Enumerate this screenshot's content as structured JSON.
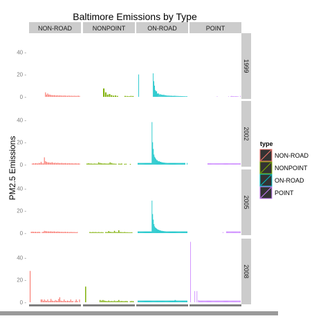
{
  "chart_data": {
    "type": "bar",
    "title": "Baltimore Emissions by Type",
    "xlabel": "",
    "ylabel": "PM2.5 Emissions",
    "ylim": [
      0,
      55
    ],
    "y_ticks": [
      0,
      20,
      40
    ],
    "y_tick_labels": [
      "0 -",
      "20 -",
      "40 -"
    ],
    "grid": false,
    "facets": {
      "columns": [
        "NON-ROAD",
        "NONPOINT",
        "ON-ROAD",
        "POINT"
      ],
      "rows": [
        "1999",
        "2002",
        "2005",
        "2008"
      ]
    },
    "legend": {
      "title": "type",
      "placement": "right",
      "entries": [
        "NON-ROAD",
        "NONPOINT",
        "ON-ROAD",
        "POINT"
      ]
    },
    "colors": {
      "NON-ROAD": "#f8766d",
      "NONPOINT": "#7cae00",
      "ON-ROAD": "#00bfc4",
      "POINT": "#c77cff"
    },
    "panels": {
      "1999": {
        "NON-ROAD": [
          0,
          0,
          0,
          0,
          0,
          0,
          0,
          0,
          0,
          0,
          0,
          0,
          0,
          0,
          4,
          2,
          3,
          2,
          2,
          1.6,
          1.5,
          1.4,
          1.5,
          1.3,
          1.2,
          1.4,
          1.1,
          1.3,
          1.2,
          1.1,
          1,
          1.2,
          1.1,
          1,
          0.9,
          1.1,
          1,
          0.9,
          1,
          0.8,
          1,
          0.9,
          0.8,
          0.9,
          1,
          0.8
        ],
        "NONPOINT": [
          0,
          0,
          0,
          0,
          0,
          0,
          0,
          0,
          0,
          0,
          7.5,
          4,
          2,
          2.5,
          1.5,
          1,
          1.2,
          0.8,
          0,
          0,
          0,
          0.8,
          0.7,
          0.6,
          0.8,
          0.7
        ],
        "ON-ROAD": [
          0,
          0,
          20,
          0,
          0,
          0,
          0,
          0,
          0,
          0,
          0,
          0,
          0,
          0,
          0,
          0,
          0,
          0,
          0,
          0,
          0,
          0,
          21,
          14,
          10,
          6,
          5,
          5,
          3,
          3,
          3,
          2,
          2.5,
          2,
          2,
          1.8,
          1.6,
          2,
          1.4,
          1.5,
          1.3,
          1.2,
          1.1,
          1.2,
          1,
          1.1,
          0.9,
          1,
          0.9,
          0.8,
          0.9,
          0.8,
          1,
          0.8,
          0.9,
          0.7,
          0.8,
          0.7,
          0.7,
          0.6,
          0.7,
          0.6,
          0.6,
          0.6,
          0.5,
          0.6,
          0.5,
          0.5,
          0.5,
          0.5
        ],
        "POINT": [
          0,
          0,
          0,
          0,
          0,
          0,
          0,
          0,
          0,
          0,
          0,
          0,
          0,
          0,
          0,
          0,
          0,
          0,
          0,
          0,
          0,
          0,
          0,
          0,
          0,
          0,
          0,
          0,
          0,
          0,
          0,
          0,
          0,
          0,
          0,
          0,
          0,
          0.5,
          0,
          0,
          0,
          0,
          0,
          0,
          0,
          0,
          0,
          0,
          0,
          0,
          0,
          0,
          0,
          0.5,
          0,
          0,
          0.6,
          0.8,
          0.5,
          0.6,
          0.5,
          0.4,
          0.5,
          0.6,
          0.5,
          0.4,
          0.5,
          0,
          0,
          0.8
        ]
      },
      "2002": {
        "NON-ROAD": [
          0,
          0,
          1,
          1.2,
          1,
          1.3,
          1.2,
          1,
          1.5,
          1.3,
          2.5,
          1.2,
          1.1,
          6.5,
          3,
          2.5,
          2,
          2,
          1.8,
          1.7,
          2.2,
          1.6,
          1.5,
          1.7,
          1.4,
          1.6,
          1.5,
          1.3,
          1.4,
          1.5,
          1.2,
          1.3,
          1.4,
          1.2,
          1.1,
          1.3,
          1.2,
          1.1,
          1.2,
          1.1,
          1,
          1.2,
          1.1,
          1,
          1.1,
          1
        ],
        "NONPOINT": [
          0,
          0,
          1,
          1.2,
          1,
          1,
          0.8,
          1,
          0.9,
          0.8,
          2,
          1.5,
          1.2,
          1,
          1.1,
          1,
          0.9,
          1,
          2,
          1.5,
          1,
          0.9,
          0.8,
          0,
          0.9,
          0.8,
          1,
          0,
          0.7,
          0.8,
          0,
          0,
          0.6,
          0,
          0
        ],
        "ON-ROAD": [
          0,
          1.5,
          1.5,
          1.5,
          1.5,
          1.5,
          1.5,
          1.5,
          1.5,
          1.5,
          1.5,
          1.5,
          1.5,
          1.5,
          1.5,
          1.5,
          1.5,
          1.5,
          1.5,
          1.5,
          1.5,
          1.5,
          38,
          20,
          14,
          9,
          7,
          6,
          5,
          4,
          4,
          3,
          3,
          3,
          2.5,
          2.5,
          2.2,
          2,
          2,
          1.8,
          1.8,
          1.7,
          1.6,
          1.6,
          1.5,
          1.5,
          1.5,
          1.5,
          1.5,
          1.5,
          1.5,
          1.5,
          1.5,
          1.5,
          1.5,
          1.5,
          1.5,
          1.5,
          1.5,
          1.5,
          1.5,
          1.5,
          1.5,
          1.5,
          1.5,
          1.5,
          1.5,
          1.5,
          1.5,
          1.5,
          1.5,
          1.5,
          0,
          0,
          1.5
        ],
        "POINT": [
          0,
          0,
          0,
          0,
          0,
          0,
          0,
          0,
          0,
          0,
          0,
          0,
          0,
          0,
          0,
          0,
          0,
          0,
          0,
          0,
          0,
          0,
          0,
          0,
          1.2,
          1.2,
          1.2,
          1.2,
          1.2,
          1.2,
          1.2,
          1.2,
          1.2,
          1.2,
          1.2,
          1.2,
          1.2,
          1.2,
          1.2,
          1.2,
          1.2,
          1.2,
          1.2,
          1.2,
          1.2,
          1.2,
          1.2,
          1.2,
          1.2,
          1.2,
          1.2,
          1.2,
          1.2,
          1.2,
          1.2,
          1.2,
          1.2,
          1.2,
          1.2,
          1.2,
          1.2,
          1.2,
          1.2,
          1.2,
          1.2,
          1.2,
          1.2,
          1.2,
          1.2,
          1.2
        ]
      },
      "2005": {
        "NON-ROAD": [
          0,
          1.2,
          1.3,
          1.2,
          1.1,
          1.2,
          1,
          1.1,
          1.2,
          1,
          0,
          1,
          1.1,
          2,
          1.8,
          1.6,
          1.5,
          1.5,
          1.4,
          1.6,
          1.3,
          1.4,
          1.5,
          1.3,
          1.2,
          1.4,
          1.3,
          1.2,
          1.1,
          1.2,
          1,
          1.1,
          1.2,
          1,
          1.1,
          1,
          0.9,
          1.1,
          1,
          0.9,
          1,
          0.9,
          0.8,
          1,
          0,
          0
        ],
        "NONPOINT": [
          0,
          0,
          0,
          0,
          1,
          0.8,
          1,
          0.9,
          1,
          0.8,
          1,
          0.8,
          0.9,
          0.8,
          0,
          1,
          0.9,
          1.8,
          1.2,
          1,
          0.9,
          2,
          1,
          0.9,
          2.5,
          1,
          0.9,
          0.8,
          1,
          0.8,
          0.8,
          0.7,
          0.7,
          0.8,
          0
        ],
        "ON-ROAD": [
          0,
          1.5,
          1.5,
          1.5,
          1.5,
          1.5,
          1.5,
          1.5,
          1.5,
          1.5,
          1.5,
          1.5,
          1.5,
          1.5,
          1.5,
          1.5,
          1.5,
          1.5,
          1.5,
          1.5,
          1.5,
          1.5,
          29,
          17,
          12,
          8,
          6,
          5,
          4.5,
          4,
          3.5,
          3,
          3,
          2.5,
          2.5,
          2.2,
          2,
          2,
          1.8,
          1.8,
          1.7,
          1.6,
          1.6,
          1.5,
          1.5,
          1.5,
          1.5,
          1.5,
          1.5,
          1.5,
          1.5,
          1.5,
          1.5,
          1.5,
          1.5,
          1.5,
          1.5,
          1.5,
          1.5,
          1.5,
          1.5,
          1.5,
          1.5,
          1.5,
          1.5,
          1.5,
          1.5,
          1.5,
          1.5,
          1.5,
          1.5,
          1.5,
          1.5,
          1.5,
          1.5
        ],
        "POINT": [
          0,
          0,
          0,
          0,
          0,
          0,
          0,
          0,
          0,
          0,
          0,
          0,
          0,
          0,
          0,
          0,
          0,
          0,
          0,
          0,
          0,
          0,
          0,
          0,
          0,
          0,
          0,
          0,
          0,
          0,
          0,
          0,
          0,
          0,
          0,
          0,
          0,
          0,
          0,
          0,
          0,
          0,
          0,
          0,
          0,
          0.9,
          0,
          0,
          0,
          0,
          1.5,
          1.5,
          1.5,
          1.5,
          1.5,
          1.5,
          1.5,
          1.5,
          1.5,
          1.5,
          1.5,
          1.5,
          1.5,
          1.5,
          1.5,
          1.5,
          1.5,
          1.5,
          1.5,
          1.5
        ]
      },
      "2008": {
        "NON-ROAD": [
          28,
          0,
          0,
          0,
          0,
          0,
          0,
          0,
          0,
          0,
          2.5,
          2.5,
          1.2,
          2.5,
          1.5,
          1.2,
          2.5,
          1,
          1.2,
          3,
          1.5,
          1.2,
          1,
          2,
          1.5,
          1.2,
          3,
          4.5,
          1.5,
          1.2,
          1,
          2.5,
          1.2,
          1,
          1.5,
          1.2,
          1,
          2.5,
          1,
          1.2,
          0,
          1,
          2.5,
          1.2,
          0,
          2.5
        ],
        "NONPOINT": [
          0,
          14,
          0,
          0,
          0,
          0,
          0,
          0,
          0,
          0,
          0,
          2,
          1.5,
          2,
          1.5,
          1.2,
          1,
          1.5,
          1,
          1.2,
          1,
          1.5,
          1,
          1.2,
          2,
          1,
          1.2,
          1,
          1,
          1.2,
          1,
          0,
          1,
          1.2,
          1
        ],
        "ON-ROAD": [
          0,
          1.5,
          1.5,
          1.5,
          1.5,
          1.5,
          1.5,
          1.5,
          1.5,
          1.5,
          1.5,
          1.5,
          1.5,
          1.5,
          1.5,
          1.5,
          1.5,
          1.5,
          1.5,
          1.5,
          1.5,
          1.5,
          1.5,
          1.5,
          1.5,
          1.5,
          1.5,
          1.5,
          1.5,
          1.5,
          1.5,
          1.5,
          1.5,
          1.5,
          1.5,
          1.5,
          1.5,
          1.5,
          1.5,
          1.5,
          1.5,
          1.5,
          1.5,
          1.5,
          1.5,
          1.5,
          1.5,
          1.5,
          1.5,
          1.5,
          1.5,
          1.5,
          1.5,
          1.5,
          1.5,
          1.5,
          2,
          2,
          1.5,
          1.5,
          1.5,
          1.5,
          1.5,
          1.5,
          1.5,
          1.5,
          1.5,
          1.5,
          1.5,
          1.5,
          1.5,
          1.5,
          1.5,
          1.5,
          1.5
        ],
        "POINT": [
          54,
          0,
          0,
          0,
          0,
          0,
          10,
          0,
          0,
          10,
          0,
          2,
          1.5,
          1.5,
          1.5,
          1.5,
          1.5,
          1.5,
          1.5,
          1.5,
          1.5,
          1.5,
          1.5,
          1.5,
          1.5,
          1.5,
          1.5,
          1.5,
          1.5,
          1.5,
          1.5,
          1.5,
          1.5,
          1.5,
          1.5,
          1.5,
          1.5,
          1.5,
          1.5,
          1.5,
          1.5,
          1.5,
          1.5,
          1.5,
          1.5,
          1.5,
          1.5,
          1.5,
          1.5,
          1.5,
          1.5,
          1.5,
          1.5,
          1.5,
          1.5,
          1.5,
          1.5,
          1.5,
          1.5,
          1.5,
          1.5,
          1.5,
          1.5,
          1.5,
          1.5,
          1.5,
          1.5,
          1.5,
          1.5,
          1.5
        ]
      }
    }
  }
}
